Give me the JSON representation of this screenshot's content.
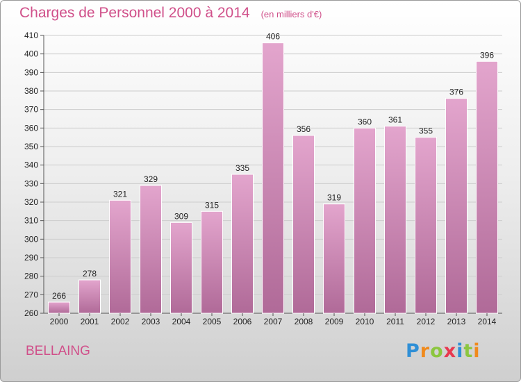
{
  "title": "Charges de Personnel 2000 à 2014",
  "subtitle": "(en milliers d'€)",
  "location": "BELLAING",
  "logo": {
    "text": "Proxiti",
    "letters": [
      {
        "ch": "P",
        "color": "#2f8fd6"
      },
      {
        "ch": "r",
        "color": "#f08a1c"
      },
      {
        "ch": "o",
        "color": "#8cc63f"
      },
      {
        "ch": "x",
        "color": "#e8384f"
      },
      {
        "ch": "i",
        "color": "#2f8fd6"
      },
      {
        "ch": "t",
        "color": "#8cc63f"
      },
      {
        "ch": "i",
        "color": "#f08a1c"
      }
    ]
  },
  "colors": {
    "title": "#d0508a",
    "bar_top": "#e3a5cd",
    "bar_bottom": "#b06a98",
    "grid": "#cccccc"
  },
  "chart_data": {
    "type": "bar",
    "categories": [
      "2000",
      "2001",
      "2002",
      "2003",
      "2004",
      "2005",
      "2006",
      "2007",
      "2008",
      "2009",
      "2010",
      "2011",
      "2012",
      "2013",
      "2014"
    ],
    "values": [
      266,
      278,
      321,
      329,
      309,
      315,
      335,
      406,
      356,
      319,
      360,
      361,
      355,
      376,
      396
    ],
    "ylim": [
      260,
      410
    ],
    "yticks": [
      260,
      270,
      280,
      290,
      300,
      310,
      320,
      330,
      340,
      350,
      360,
      370,
      380,
      390,
      400,
      410
    ],
    "grid": true
  }
}
